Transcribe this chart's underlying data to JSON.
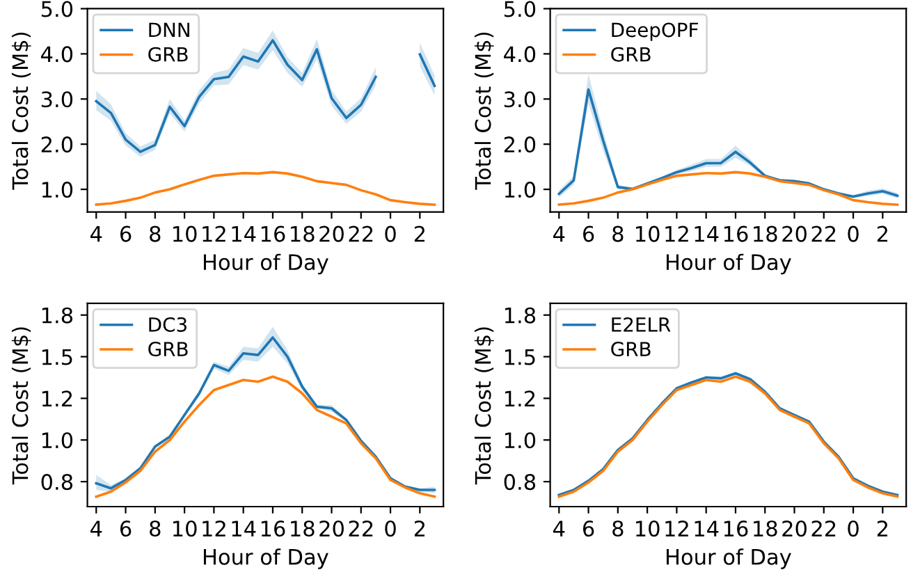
{
  "chart_data": [
    {
      "type": "line",
      "xlabel": "Hour of Day",
      "ylabel": "Total Cost (M$)",
      "categories": [
        "4",
        null,
        "6",
        null,
        "8",
        null,
        "10",
        null,
        "12",
        null,
        "14",
        null,
        "16",
        null,
        "18",
        null,
        "20",
        null,
        "22",
        null,
        "0",
        null,
        "2",
        null
      ],
      "ylim": [
        0.5,
        5.0
      ],
      "yticks": [
        {
          "value": 1,
          "label": "1.0"
        },
        {
          "value": 2,
          "label": "2.0"
        },
        {
          "value": 3,
          "label": "3.0"
        },
        {
          "value": 4,
          "label": "4.0"
        },
        {
          "value": 5,
          "label": "5.0"
        }
      ],
      "legend": "top left",
      "grid": false,
      "series": [
        {
          "name": "DNN",
          "color": "#1f77b4",
          "values": [
            2.95,
            2.69,
            2.1,
            1.83,
            1.98,
            2.83,
            2.4,
            3.05,
            3.44,
            3.49,
            3.94,
            3.83,
            4.3,
            3.76,
            3.42,
            4.1,
            3.02,
            2.58,
            2.87,
            3.49,
            null,
            null,
            3.99,
            3.29
          ],
          "lower": [
            2.75,
            2.52,
            1.97,
            1.72,
            1.87,
            2.68,
            2.28,
            2.9,
            3.3,
            3.32,
            3.75,
            3.65,
            4.08,
            3.58,
            3.27,
            3.88,
            2.85,
            2.45,
            2.72,
            3.3,
            null,
            null,
            3.72,
            3.08
          ],
          "upper": [
            3.18,
            2.88,
            2.25,
            1.95,
            2.1,
            3.0,
            2.52,
            3.2,
            3.58,
            3.65,
            4.13,
            4.02,
            4.52,
            3.93,
            3.58,
            4.33,
            3.2,
            2.72,
            3.02,
            3.7,
            null,
            null,
            4.25,
            3.52
          ]
        },
        {
          "name": "GRB",
          "color": "#ff7f0e",
          "values": [
            0.66,
            0.69,
            0.745,
            0.815,
            0.93,
            1.0,
            1.11,
            1.21,
            1.3,
            1.33,
            1.36,
            1.35,
            1.38,
            1.35,
            1.28,
            1.18,
            1.14,
            1.1,
            0.98,
            0.89,
            0.76,
            0.715,
            0.68,
            0.66
          ]
        }
      ]
    },
    {
      "type": "line",
      "xlabel": "Hour of Day",
      "ylabel": "Total Cost (M$)",
      "categories": [
        "4",
        null,
        "6",
        null,
        "8",
        null,
        "10",
        null,
        "12",
        null,
        "14",
        null,
        "16",
        null,
        "18",
        null,
        "20",
        null,
        "22",
        null,
        "0",
        null,
        "2",
        null
      ],
      "ylim": [
        0.5,
        5.0
      ],
      "yticks": [
        {
          "value": 1,
          "label": "1.0"
        },
        {
          "value": 2,
          "label": "2.0"
        },
        {
          "value": 3,
          "label": "3.0"
        },
        {
          "value": 4,
          "label": "4.0"
        },
        {
          "value": 5,
          "label": "5.0"
        }
      ],
      "legend": "top left",
      "grid": false,
      "series": [
        {
          "name": "DeepOPF",
          "color": "#1f77b4",
          "values": [
            0.9,
            1.2,
            3.21,
            2.08,
            1.05,
            1.01,
            1.13,
            1.25,
            1.38,
            1.47,
            1.58,
            1.58,
            1.83,
            1.59,
            1.3,
            1.2,
            1.18,
            1.13,
            1.0,
            0.91,
            0.84,
            0.91,
            0.96,
            0.86
          ],
          "lower": [
            0.82,
            1.1,
            2.9,
            1.85,
            1.0,
            0.98,
            1.1,
            1.21,
            1.33,
            1.4,
            1.5,
            1.5,
            1.7,
            1.52,
            1.26,
            1.17,
            1.15,
            1.1,
            0.97,
            0.88,
            0.81,
            0.85,
            0.9,
            0.8
          ],
          "upper": [
            0.98,
            1.3,
            3.55,
            2.3,
            1.1,
            1.04,
            1.16,
            1.29,
            1.43,
            1.55,
            1.67,
            1.67,
            1.97,
            1.67,
            1.34,
            1.23,
            1.21,
            1.16,
            1.03,
            0.94,
            0.87,
            0.97,
            1.02,
            0.92
          ]
        },
        {
          "name": "GRB",
          "color": "#ff7f0e",
          "values": [
            0.66,
            0.69,
            0.745,
            0.815,
            0.93,
            1.0,
            1.11,
            1.21,
            1.3,
            1.33,
            1.36,
            1.35,
            1.38,
            1.35,
            1.28,
            1.18,
            1.14,
            1.1,
            0.98,
            0.89,
            0.76,
            0.715,
            0.68,
            0.66
          ]
        }
      ]
    },
    {
      "type": "line",
      "xlabel": "Hour of Day",
      "ylabel": "Total Cost (M$)",
      "categories": [
        "4",
        null,
        "6",
        null,
        "8",
        null,
        "10",
        null,
        "12",
        null,
        "14",
        null,
        "16",
        null,
        "18",
        null,
        "20",
        null,
        "22",
        null,
        "0",
        null,
        "2",
        null
      ],
      "ylim": [
        0.6,
        1.82
      ],
      "yticks": [
        {
          "value": 0.75,
          "label": "0.8"
        },
        {
          "value": 1.0,
          "label": "1.0"
        },
        {
          "value": 1.25,
          "label": "1.2"
        },
        {
          "value": 1.5,
          "label": "1.5"
        },
        {
          "value": 1.75,
          "label": "1.8"
        }
      ],
      "legend": "top left",
      "grid": false,
      "series": [
        {
          "name": "DC3",
          "color": "#1f77b4",
          "values": [
            0.74,
            0.71,
            0.76,
            0.83,
            0.96,
            1.02,
            1.15,
            1.28,
            1.45,
            1.415,
            1.52,
            1.51,
            1.615,
            1.5,
            1.32,
            1.2,
            1.19,
            1.12,
            0.995,
            0.9,
            0.77,
            0.72,
            0.7,
            0.7
          ],
          "lower": [
            0.7,
            0.69,
            0.75,
            0.82,
            0.95,
            1.01,
            1.14,
            1.26,
            1.43,
            1.39,
            1.48,
            1.47,
            1.56,
            1.46,
            1.3,
            1.19,
            1.17,
            1.11,
            0.985,
            0.89,
            0.76,
            0.71,
            0.69,
            0.68
          ],
          "upper": [
            0.79,
            0.73,
            0.77,
            0.84,
            0.97,
            1.03,
            1.16,
            1.3,
            1.47,
            1.44,
            1.56,
            1.55,
            1.68,
            1.54,
            1.34,
            1.21,
            1.21,
            1.13,
            1.005,
            0.91,
            0.78,
            0.73,
            0.71,
            0.72
          ]
        },
        {
          "name": "GRB",
          "color": "#ff7f0e",
          "values": [
            0.66,
            0.69,
            0.745,
            0.815,
            0.93,
            1.0,
            1.11,
            1.21,
            1.3,
            1.33,
            1.36,
            1.35,
            1.38,
            1.35,
            1.28,
            1.18,
            1.14,
            1.1,
            0.98,
            0.89,
            0.76,
            0.715,
            0.68,
            0.66
          ]
        }
      ]
    },
    {
      "type": "line",
      "xlabel": "Hour of Day",
      "ylabel": "Total Cost (M$)",
      "categories": [
        "4",
        null,
        "6",
        null,
        "8",
        null,
        "10",
        null,
        "12",
        null,
        "14",
        null,
        "16",
        null,
        "18",
        null,
        "20",
        null,
        "22",
        null,
        "0",
        null,
        "2",
        null
      ],
      "ylim": [
        0.6,
        1.82
      ],
      "yticks": [
        {
          "value": 0.75,
          "label": "0.8"
        },
        {
          "value": 1.0,
          "label": "1.0"
        },
        {
          "value": 1.25,
          "label": "1.2"
        },
        {
          "value": 1.5,
          "label": "1.5"
        },
        {
          "value": 1.75,
          "label": "1.8"
        }
      ],
      "legend": "top left",
      "grid": false,
      "series": [
        {
          "name": "E2ELR",
          "color": "#1f77b4",
          "values": [
            0.67,
            0.7,
            0.755,
            0.825,
            0.94,
            1.01,
            1.12,
            1.22,
            1.31,
            1.345,
            1.375,
            1.37,
            1.4,
            1.365,
            1.29,
            1.19,
            1.15,
            1.11,
            0.99,
            0.9,
            0.77,
            0.725,
            0.69,
            0.67
          ],
          "lower": [
            0.665,
            0.695,
            0.75,
            0.82,
            0.935,
            1.005,
            1.115,
            1.215,
            1.3,
            1.335,
            1.365,
            1.36,
            1.39,
            1.355,
            1.285,
            1.185,
            1.145,
            1.105,
            0.985,
            0.895,
            0.765,
            0.72,
            0.685,
            0.665
          ],
          "upper": [
            0.675,
            0.705,
            0.76,
            0.83,
            0.945,
            1.015,
            1.125,
            1.225,
            1.32,
            1.355,
            1.385,
            1.38,
            1.41,
            1.375,
            1.295,
            1.195,
            1.155,
            1.115,
            0.995,
            0.905,
            0.775,
            0.73,
            0.695,
            0.675
          ]
        },
        {
          "name": "GRB",
          "color": "#ff7f0e",
          "values": [
            0.66,
            0.69,
            0.745,
            0.815,
            0.93,
            1.0,
            1.11,
            1.21,
            1.3,
            1.33,
            1.36,
            1.35,
            1.38,
            1.35,
            1.28,
            1.18,
            1.14,
            1.1,
            0.98,
            0.89,
            0.76,
            0.715,
            0.68,
            0.66
          ]
        }
      ]
    }
  ]
}
